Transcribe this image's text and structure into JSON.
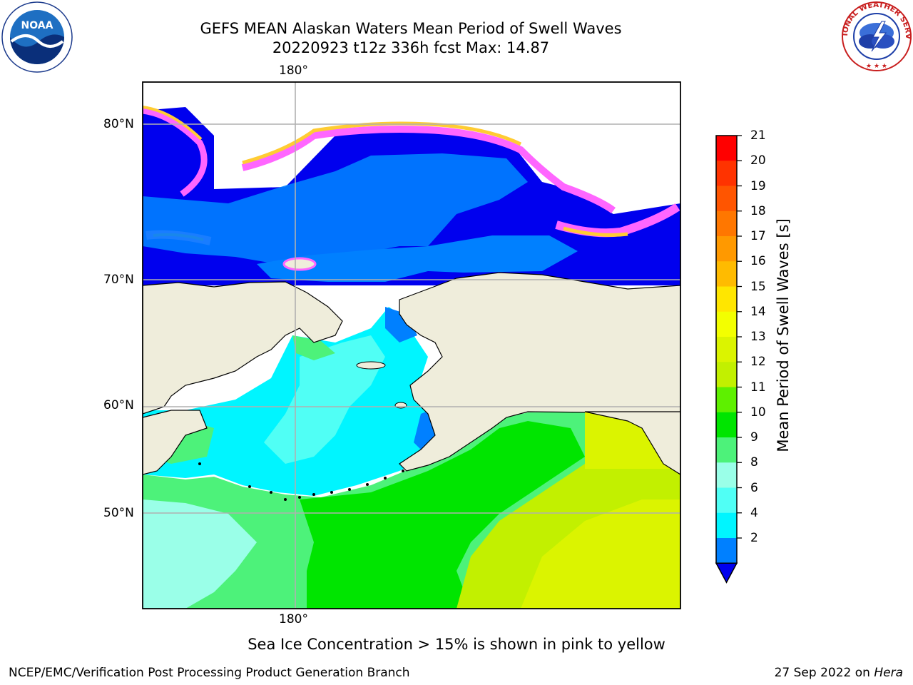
{
  "title": {
    "line1": "GEFS MEAN Alaskan Waters Mean Period of Swell Waves",
    "line2": "20220923 t12z 336h fcst   Max: 14.87"
  },
  "logos": {
    "left": "noaa-logo",
    "right": "national-weather-service-logo",
    "right_text": "NATIONAL WEATHER SERVICE"
  },
  "map": {
    "lon_labels": {
      "top": "180°",
      "bottom": "180°"
    },
    "lat_labels": [
      "80°N",
      "70°N",
      "60°N",
      "50°N"
    ],
    "colors": {
      "land": "#efeddb",
      "ocean_deep": "#0000ee",
      "grid": "#b0b0b0"
    }
  },
  "colorbar": {
    "label": "Mean Period of Swell Waves [s]",
    "ticks": [
      "21",
      "20",
      "19",
      "18",
      "17",
      "16",
      "15",
      "14",
      "13",
      "12",
      "11",
      "10",
      "9",
      "8",
      "6",
      "4",
      "2"
    ],
    "colors": [
      "#ff0000",
      "#ff3300",
      "#ff5500",
      "#ff7700",
      "#ff9900",
      "#ffbb00",
      "#ffe600",
      "#f3ff00",
      "#dbf400",
      "#c2f000",
      "#5ef000",
      "#00e500",
      "#4df27a",
      "#9affe8",
      "#50fff5",
      "#00f5ff",
      "#0080ff"
    ],
    "extend_color": "#0000ee"
  },
  "notes": {
    "ice": "Sea Ice Concentration > 15% is shown in pink to yellow",
    "footer_left": "NCEP/EMC/Verification Post Processing Product Generation Branch",
    "footer_date": "27 Sep 2022 on",
    "footer_host": "Hera"
  }
}
